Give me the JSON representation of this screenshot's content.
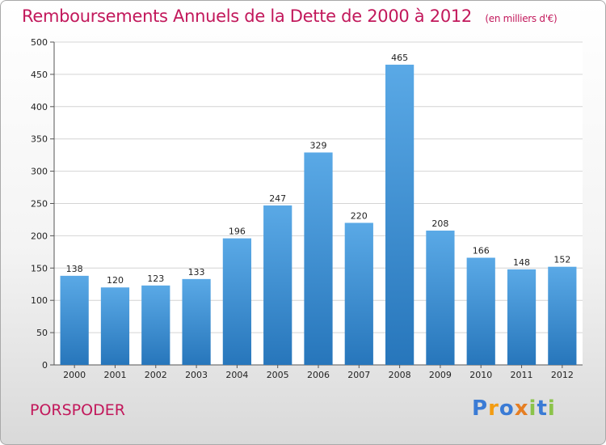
{
  "title": "Remboursements Annuels de la Dette de 2000 à 2012",
  "unit": "(en milliers d'€)",
  "commune": "PORSPODER",
  "logo": {
    "letters": [
      "P",
      "r",
      "o",
      "x",
      "i",
      "t",
      "i"
    ],
    "colors": [
      "#3a7bd5",
      "#f39c12",
      "#3a7bd5",
      "#e67e22",
      "#8bc34a",
      "#3a7bd5",
      "#8bc34a"
    ]
  },
  "chart_data": {
    "type": "bar",
    "categories": [
      "2000",
      "2001",
      "2002",
      "2003",
      "2004",
      "2005",
      "2006",
      "2007",
      "2008",
      "2009",
      "2010",
      "2011",
      "2012"
    ],
    "values": [
      138,
      120,
      123,
      133,
      196,
      247,
      329,
      220,
      465,
      208,
      166,
      148,
      152
    ],
    "ylim": [
      0,
      500
    ],
    "yticks": [
      0,
      50,
      100,
      150,
      200,
      250,
      300,
      350,
      400,
      450,
      500
    ],
    "grid": true,
    "colors": {
      "bar_top": "#5aa9e6",
      "bar_bottom": "#2776bb",
      "title": "#c2185b"
    }
  }
}
